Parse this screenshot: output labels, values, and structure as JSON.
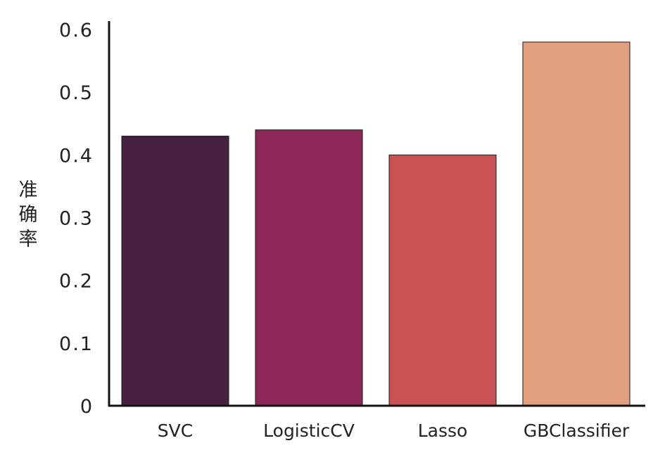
{
  "chart_data": {
    "type": "bar",
    "categories": [
      "SVC",
      "LogisticCV",
      "Lasso",
      "GBClassifier"
    ],
    "values": [
      0.43,
      0.44,
      0.4,
      0.58
    ],
    "colors": [
      "#462040",
      "#8c2858",
      "#c85352",
      "#e19f7d"
    ],
    "ylabel": "准确率",
    "ylim": [
      0,
      0.6
    ],
    "yticks": [
      0,
      0.1,
      0.2,
      0.3,
      0.4,
      0.5,
      0.6
    ],
    "ytick_labels": [
      "0",
      "0.1",
      "0.2",
      "0.3",
      "0.4",
      "0.5",
      "0.6"
    ],
    "grid": false,
    "legend": "none"
  }
}
